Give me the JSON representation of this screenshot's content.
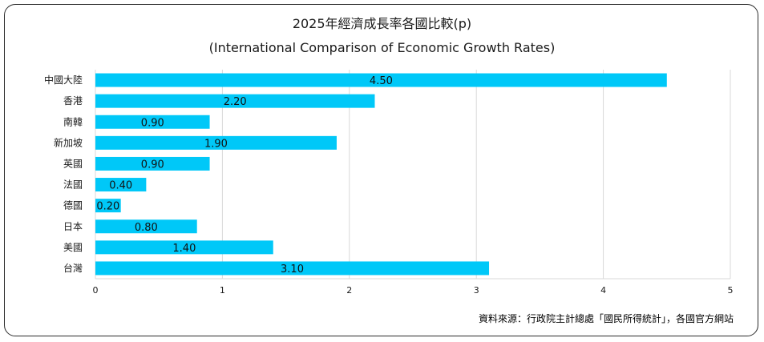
{
  "chart_data": {
    "type": "bar",
    "orientation": "horizontal",
    "title": "2025年經濟成長率各國比較(p)",
    "subtitle": "(International Comparison of Economic Growth Rates)",
    "categories": [
      "中國大陸",
      "香港",
      "南韓",
      "新加坡",
      "英國",
      "法國",
      "德國",
      "日本",
      "美國",
      "台灣"
    ],
    "values": [
      4.5,
      2.2,
      0.9,
      1.9,
      0.9,
      0.4,
      0.2,
      0.8,
      1.4,
      3.1
    ],
    "value_labels": [
      "4.50",
      "2.20",
      "0.90",
      "1.90",
      "0.90",
      "0.40",
      "0.20",
      "0.80",
      "1.40",
      "3.10"
    ],
    "xlim": [
      0,
      5
    ],
    "xticks": [
      "0",
      "1",
      "2",
      "3",
      "4",
      "5"
    ],
    "xlabel": "",
    "ylabel": "",
    "grid": true,
    "legend": "none",
    "colors": {
      "bar": "#00C8F8",
      "grid": "#D9D9D9",
      "text": "#1a1a1a"
    }
  },
  "source": "資料來源：行政院主計總處「國民所得統計」，各國官方網站"
}
